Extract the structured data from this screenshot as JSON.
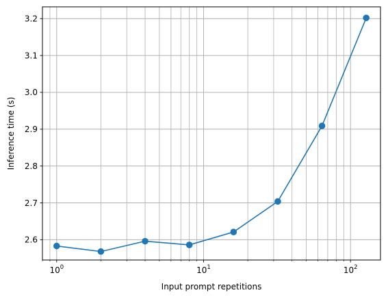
{
  "chart_data": {
    "type": "line",
    "title": "",
    "xlabel": "Input prompt repetitions",
    "ylabel": "Inference time (s)",
    "xscale": "log",
    "xlim": [
      0.8,
      160
    ],
    "ylim": [
      2.545,
      3.232
    ],
    "grid": true,
    "grid_which": "both",
    "legend": "none",
    "x_ticks": [
      {
        "value": 1,
        "base": "10",
        "exp": "0"
      },
      {
        "value": 10,
        "base": "10",
        "exp": "1"
      },
      {
        "value": 100,
        "base": "10",
        "exp": "2"
      }
    ],
    "y_ticks": [
      {
        "value": 2.6,
        "label": "2.6"
      },
      {
        "value": 2.7,
        "label": "2.7"
      },
      {
        "value": 2.8,
        "label": "2.8"
      },
      {
        "value": 2.9,
        "label": "2.9"
      },
      {
        "value": 3.0,
        "label": "3.0"
      },
      {
        "value": 3.1,
        "label": "3.1"
      },
      {
        "value": 3.2,
        "label": "3.2"
      }
    ],
    "series": [
      {
        "color": "#1f77b4",
        "marker": "circle",
        "x": [
          1,
          2,
          4,
          8,
          16,
          32,
          64,
          128
        ],
        "y": [
          2.583,
          2.568,
          2.596,
          2.586,
          2.621,
          2.704,
          2.909,
          3.202
        ]
      }
    ],
    "grid_color": "#b0b0b0"
  }
}
